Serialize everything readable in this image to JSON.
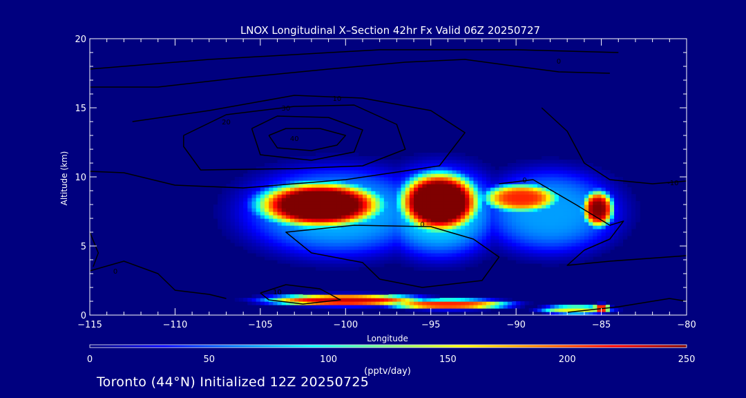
{
  "footer": {
    "text": "Toronto (44°N) Initialized 12Z 20250725"
  },
  "colors": {
    "background": "#00007f",
    "foreground": "#ffffff",
    "contour": "#000000"
  },
  "chart_data": {
    "type": "heatmap",
    "title": "LNOX Longitudinal X–Section 42hr  Fx Valid 06Z 20250727",
    "xlabel": "Longitude",
    "ylabel": "Altitude (km)",
    "xlim": [
      -115,
      -80
    ],
    "ylim": [
      0,
      20
    ],
    "xticks": [
      -115,
      -110,
      -105,
      -100,
      -95,
      -90,
      -85,
      -80
    ],
    "xtick_labels": [
      "−115",
      "−110",
      "−105",
      "−100",
      "−95",
      "−90",
      "−85",
      "−80"
    ],
    "yticks": [
      0,
      5,
      10,
      15,
      20
    ],
    "ytick_labels": [
      "0",
      "5",
      "10",
      "15",
      "20"
    ],
    "colorbar": {
      "label": "(pptv/day)",
      "range": [
        0,
        250
      ],
      "ticks": [
        0,
        50,
        100,
        150,
        200,
        250
      ],
      "tick_labels": [
        "0",
        "50",
        "100",
        "150",
        "200",
        "250"
      ],
      "colormap": [
        "#00007f",
        "#0000ff",
        "#007fff",
        "#00ffff",
        "#7fff7f",
        "#ffff00",
        "#ff7f00",
        "#ff0000",
        "#7f0000"
      ]
    },
    "field_blobs": [
      {
        "name": "upper-west-max",
        "lon": -101.5,
        "alt": 8.0,
        "lon_halfwidth": 3.6,
        "alt_halfwidth": 1.6,
        "peak": 290
      },
      {
        "name": "upper-center-max",
        "lon": -94.5,
        "alt": 8.2,
        "lon_halfwidth": 2.3,
        "alt_halfwidth": 2.1,
        "peak": 300
      },
      {
        "name": "upper-east-max",
        "lon": -89.7,
        "alt": 8.5,
        "lon_halfwidth": 2.2,
        "alt_halfwidth": 1.0,
        "peak": 210
      },
      {
        "name": "upper-far-east-max",
        "lon": -85.2,
        "alt": 7.7,
        "lon_halfwidth": 0.9,
        "alt_halfwidth": 1.3,
        "peak": 250
      },
      {
        "name": "layer-west",
        "lon": -100.5,
        "alt": 7.5,
        "lon_halfwidth": 5.5,
        "alt_halfwidth": 3.2,
        "peak": 75
      },
      {
        "name": "layer-center",
        "lon": -94.5,
        "alt": 7.5,
        "lon_halfwidth": 3.5,
        "alt_halfwidth": 3.3,
        "peak": 85
      },
      {
        "name": "layer-east",
        "lon": -88.0,
        "alt": 7.5,
        "lon_halfwidth": 4.0,
        "alt_halfwidth": 3.0,
        "peak": 70
      },
      {
        "name": "surface-west",
        "lon": -100.0,
        "alt": 1.1,
        "lon_halfwidth": 4.5,
        "alt_halfwidth": 0.4,
        "peak": 230
      },
      {
        "name": "surface-center",
        "lon": -94.0,
        "alt": 0.8,
        "lon_halfwidth": 3.5,
        "alt_halfwidth": 0.35,
        "peak": 210
      },
      {
        "name": "surface-east",
        "lon": -86.5,
        "alt": 0.4,
        "lon_halfwidth": 2.0,
        "alt_halfwidth": 0.3,
        "peak": 150
      },
      {
        "name": "surface-east-spot",
        "lon": -85.0,
        "alt": 0.5,
        "lon_halfwidth": 0.5,
        "alt_halfwidth": 0.3,
        "peak": 220
      }
    ],
    "contours": [
      {
        "label": "40",
        "label_at": [
          -103,
          12.6
        ],
        "points": [
          [
            -104.5,
            13.0
          ],
          [
            -103.5,
            13.5
          ],
          [
            -101.5,
            13.5
          ],
          [
            -100,
            13.0
          ],
          [
            -100.5,
            12.3
          ],
          [
            -102,
            11.9
          ],
          [
            -104,
            12.1
          ],
          [
            -104.5,
            13.0
          ]
        ]
      },
      {
        "label": "30",
        "label_at": [
          -103.5,
          14.8
        ],
        "points": [
          [
            -105.5,
            13.5
          ],
          [
            -104,
            14.4
          ],
          [
            -101,
            14.3
          ],
          [
            -99,
            13.4
          ],
          [
            -99.5,
            11.8
          ],
          [
            -102,
            11.2
          ],
          [
            -105,
            11.6
          ],
          [
            -105.5,
            13.5
          ]
        ]
      },
      {
        "label": "20",
        "label_at": [
          -107,
          13.8
        ],
        "points": [
          [
            -109.5,
            13.0
          ],
          [
            -107,
            14.5
          ],
          [
            -103,
            15.1
          ],
          [
            -99.5,
            15.2
          ],
          [
            -97,
            13.8
          ],
          [
            -96.5,
            12.0
          ],
          [
            -99,
            10.8
          ],
          [
            -103,
            10.6
          ],
          [
            -108.5,
            10.5
          ],
          [
            -109.5,
            12.2
          ],
          [
            -109.5,
            13.0
          ]
        ]
      },
      {
        "label": "10",
        "label_at": [
          -100.5,
          15.5
        ],
        "points": [
          [
            -112.5,
            14.0
          ],
          [
            -108,
            14.8
          ],
          [
            -103,
            15.9
          ],
          [
            -99,
            15.7
          ],
          [
            -95,
            14.8
          ],
          [
            -93,
            13.2
          ],
          [
            -94.5,
            10.8
          ],
          [
            -100,
            9.8
          ],
          [
            -106,
            9.2
          ],
          [
            -110,
            9.4
          ],
          [
            -113,
            10.3
          ],
          [
            -115,
            10.4
          ]
        ]
      },
      {
        "label": "0",
        "label_at": [
          -87.5,
          18.2
        ],
        "points": [
          [
            -115,
            16.5
          ],
          [
            -111,
            16.5
          ],
          [
            -106,
            17.2
          ],
          [
            -101,
            17.8
          ],
          [
            -96.5,
            18.3
          ],
          [
            -93,
            18.5
          ],
          [
            -90,
            18.0
          ],
          [
            -87.5,
            17.6
          ],
          [
            -84.5,
            17.5
          ]
        ]
      },
      {
        "label": "",
        "label_at": null,
        "points": [
          [
            -115,
            17.8
          ],
          [
            -108,
            18.5
          ],
          [
            -98,
            19.2
          ],
          [
            -90,
            19.2
          ],
          [
            -84,
            19.0
          ]
        ]
      },
      {
        "label": "-10",
        "label_at": [
          -80.8,
          9.4
        ],
        "points": [
          [
            -88.5,
            15.0
          ],
          [
            -87,
            13.3
          ],
          [
            -86,
            11.0
          ],
          [
            -84.5,
            9.8
          ],
          [
            -82,
            9.5
          ],
          [
            -80,
            9.7
          ]
        ]
      },
      {
        "label": "0",
        "label_at": [
          -95.5,
          6.4
        ],
        "points": [
          [
            -102,
            4.5
          ],
          [
            -103.5,
            6.0
          ],
          [
            -99.5,
            6.5
          ],
          [
            -95,
            6.4
          ],
          [
            -92.5,
            5.5
          ],
          [
            -91,
            4.2
          ],
          [
            -92,
            2.5
          ],
          [
            -95.5,
            2.0
          ],
          [
            -98,
            2.6
          ],
          [
            -99,
            3.8
          ],
          [
            -102,
            4.5
          ]
        ]
      },
      {
        "label": "0",
        "label_at": [
          -89.5,
          9.6
        ],
        "points": [
          [
            -91,
            9.5
          ],
          [
            -89,
            9.8
          ],
          [
            -86.5,
            8.0
          ],
          [
            -84.5,
            6.5
          ],
          [
            -83.7,
            6.8
          ],
          [
            -84.5,
            5.5
          ],
          [
            -86,
            4.7
          ],
          [
            -87,
            3.6
          ],
          [
            -84.5,
            3.9
          ],
          [
            -80,
            4.3
          ]
        ]
      },
      {
        "label": "0",
        "label_at": [
          -113.5,
          3.0
        ],
        "points": [
          [
            -115,
            3.2
          ],
          [
            -113,
            3.9
          ],
          [
            -111,
            3.0
          ],
          [
            -110,
            1.8
          ],
          [
            -108,
            1.5
          ],
          [
            -107,
            1.2
          ]
        ]
      },
      {
        "label": "10",
        "label_at": [
          -104,
          1.5
        ],
        "points": [
          [
            -105,
            1.6
          ],
          [
            -103.5,
            2.2
          ],
          [
            -101.5,
            1.9
          ],
          [
            -100.3,
            1.1
          ],
          [
            -102.5,
            0.8
          ],
          [
            -104.5,
            1.1
          ],
          [
            -105,
            1.6
          ]
        ]
      },
      {
        "label": "",
        "label_at": null,
        "points": [
          [
            -115,
            6.0
          ],
          [
            -114.5,
            4.5
          ],
          [
            -114.8,
            3.5
          ]
        ]
      },
      {
        "label": "",
        "label_at": null,
        "points": [
          [
            -87,
            0.2
          ],
          [
            -85.5,
            0.4
          ],
          [
            -84,
            0.6
          ],
          [
            -82,
            1.0
          ],
          [
            -81,
            1.2
          ],
          [
            -80,
            1.0
          ]
        ]
      }
    ]
  }
}
